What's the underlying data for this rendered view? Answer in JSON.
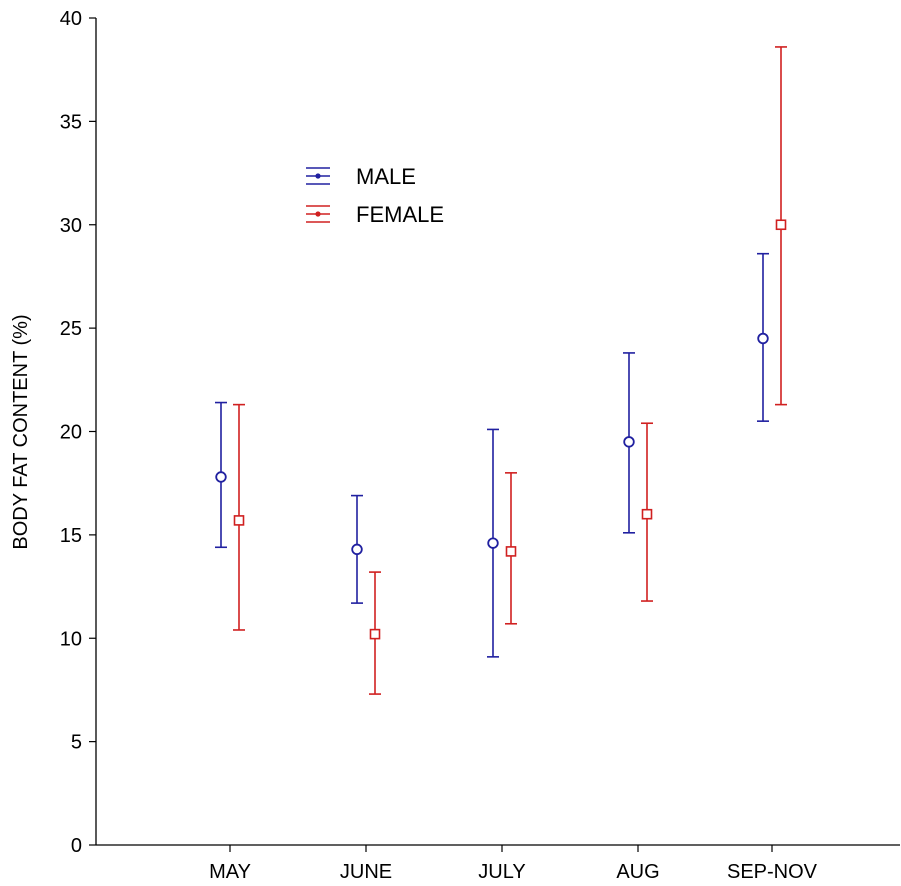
{
  "chart_data": {
    "type": "scatter",
    "title": "",
    "xlabel": "",
    "ylabel": "BODY FAT CONTENT (%)",
    "categories": [
      "MAY",
      "JUNE",
      "JULY",
      "AUG",
      "SEP-NOV"
    ],
    "ylim": [
      0,
      40
    ],
    "yticks": [
      0,
      5,
      10,
      15,
      20,
      25,
      30,
      35,
      40
    ],
    "ytick_labels": [
      "0",
      "5",
      "10",
      "15",
      "20",
      "25",
      "30",
      "35",
      "40"
    ],
    "grid": false,
    "legend_position": "upper-left",
    "series": [
      {
        "name": "MALE",
        "color": "#2020a0",
        "marker": "circle",
        "values": [
          17.8,
          14.3,
          14.6,
          19.5,
          24.5
        ],
        "lower": [
          14.4,
          11.7,
          9.1,
          15.1,
          20.5
        ],
        "upper": [
          21.4,
          16.9,
          20.1,
          23.8,
          28.6
        ]
      },
      {
        "name": "FEMALE",
        "color": "#d02020",
        "marker": "square",
        "values": [
          15.7,
          10.2,
          14.2,
          16.0,
          30.0
        ],
        "lower": [
          10.4,
          7.3,
          10.7,
          11.8,
          21.3
        ],
        "upper": [
          21.3,
          13.2,
          18.0,
          20.4,
          38.6
        ]
      }
    ]
  }
}
